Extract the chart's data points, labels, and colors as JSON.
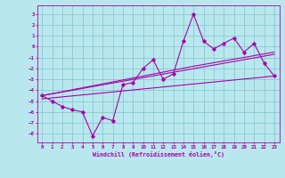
{
  "title": "",
  "xlabel": "Windchill (Refroidissement éolien,°C)",
  "bg_color": "#b8e8ee",
  "grid_color": "#90ccd4",
  "line_color": "#aa00aa",
  "xlim": [
    -0.5,
    23.5
  ],
  "ylim": [
    -8.8,
    3.8
  ],
  "xticks": [
    0,
    1,
    2,
    3,
    4,
    5,
    6,
    7,
    8,
    9,
    10,
    11,
    12,
    13,
    14,
    15,
    16,
    17,
    18,
    19,
    20,
    21,
    22,
    23
  ],
  "yticks": [
    -8,
    -7,
    -6,
    -5,
    -4,
    -3,
    -2,
    -1,
    0,
    1,
    2,
    3
  ],
  "data_x": [
    0,
    1,
    2,
    3,
    4,
    5,
    6,
    7,
    8,
    9,
    10,
    11,
    12,
    13,
    14,
    15,
    16,
    17,
    18,
    19,
    20,
    21,
    22,
    23
  ],
  "data_y": [
    -4.5,
    -5.0,
    -5.5,
    -5.8,
    -6.0,
    -8.2,
    -6.5,
    -6.8,
    -3.5,
    -3.3,
    -2.0,
    -1.2,
    -3.0,
    -2.5,
    0.5,
    3.0,
    0.5,
    -0.2,
    0.3,
    0.8,
    -0.5,
    0.3,
    -1.5,
    -2.7
  ],
  "trend1_x": [
    0,
    23
  ],
  "trend1_y": [
    -4.8,
    -2.7
  ],
  "trend2_x": [
    0,
    23
  ],
  "trend2_y": [
    -4.5,
    -0.7
  ],
  "trend3_x": [
    0,
    15,
    23
  ],
  "trend3_y": [
    -4.5,
    -1.8,
    -0.5
  ]
}
